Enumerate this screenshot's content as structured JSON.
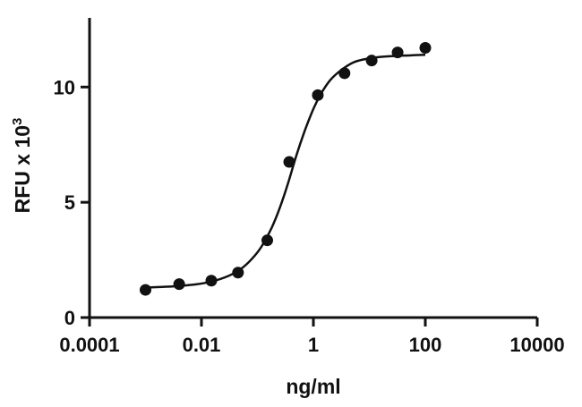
{
  "chart_data": {
    "type": "scatter",
    "xlabel": "ng/ml",
    "ylabel": "RFU x 10",
    "ylabel_superscript": "3",
    "x_scale": "log10",
    "xlim": [
      0.0001,
      10000
    ],
    "ylim": [
      0,
      13
    ],
    "x_ticks": [
      {
        "value": 0.0001,
        "label": "0.0001"
      },
      {
        "value": 0.01,
        "label": "0.01"
      },
      {
        "value": 1,
        "label": "1"
      },
      {
        "value": 100,
        "label": "100"
      },
      {
        "value": 10000,
        "label": "10000"
      }
    ],
    "y_ticks": [
      {
        "value": 0,
        "label": "0"
      },
      {
        "value": 5,
        "label": "5"
      },
      {
        "value": 10,
        "label": "10"
      }
    ],
    "grid": false,
    "legend": "none",
    "colors": {
      "points": "#111111",
      "curve": "#111111",
      "axes": "#111111"
    },
    "series": [
      {
        "kind": "points",
        "x": [
          0.001,
          0.004,
          0.015,
          0.045,
          0.15,
          0.37,
          1.2,
          3.6,
          11,
          32,
          100
        ],
        "y": [
          1.2,
          1.45,
          1.6,
          1.95,
          3.35,
          6.75,
          9.65,
          10.6,
          11.15,
          11.5,
          11.7
        ]
      },
      {
        "kind": "fit-curve",
        "x": [
          0.001,
          0.002,
          0.004,
          0.008,
          0.015,
          0.03,
          0.05,
          0.08,
          0.12,
          0.18,
          0.25,
          0.35,
          0.5,
          0.7,
          1.0,
          1.4,
          2.0,
          3.0,
          5.0,
          8.0,
          15,
          30,
          60,
          100
        ],
        "y": [
          1.3,
          1.33,
          1.37,
          1.44,
          1.56,
          1.8,
          2.1,
          2.55,
          3.1,
          3.9,
          4.75,
          5.8,
          7.05,
          8.1,
          9.05,
          9.75,
          10.3,
          10.7,
          11.05,
          11.2,
          11.3,
          11.35,
          11.38,
          11.4
        ]
      }
    ]
  }
}
